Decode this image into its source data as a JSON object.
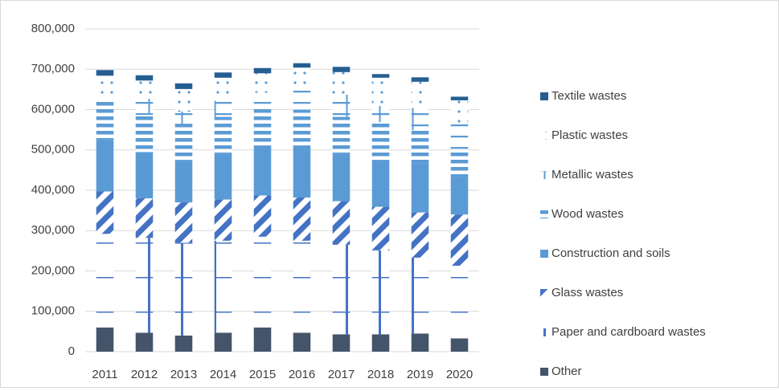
{
  "chart_data": {
    "type": "bar",
    "stacked": true,
    "title": "",
    "xlabel": "",
    "ylabel": "",
    "ylim": [
      0,
      800000
    ],
    "yticks": [
      0,
      100000,
      200000,
      300000,
      400000,
      500000,
      600000,
      700000,
      800000
    ],
    "ytick_labels": [
      "0",
      "100,000",
      "200,000",
      "300,000",
      "400,000",
      "500,000",
      "600,000",
      "700,000",
      "800,000"
    ],
    "grid": true,
    "legend_position": "right",
    "categories": [
      "2011",
      "2012",
      "2013",
      "2014",
      "2015",
      "2016",
      "2017",
      "2018",
      "2019",
      "2020"
    ],
    "series": [
      {
        "name": "Other",
        "color": "#44546a",
        "pattern": "solid",
        "values": [
          60000,
          47000,
          40000,
          47000,
          60000,
          47000,
          43000,
          43000,
          45000,
          33000
        ]
      },
      {
        "name": "Paper and cardboard wastes",
        "color": "#4472c4",
        "pattern": "cross",
        "values": [
          232000,
          235000,
          230000,
          228000,
          225000,
          228000,
          222000,
          208000,
          188000,
          180000
        ]
      },
      {
        "name": "Glass wastes",
        "color": "#4472c4",
        "pattern": "diagonal",
        "values": [
          105000,
          98000,
          100000,
          102000,
          102000,
          107000,
          108000,
          108000,
          112000,
          127000
        ]
      },
      {
        "name": "Construction and soils",
        "color": "#5b9bd5",
        "pattern": "solid",
        "values": [
          128000,
          115000,
          102000,
          113000,
          123000,
          128000,
          117000,
          115000,
          122000,
          92000
        ]
      },
      {
        "name": "Wood wastes",
        "color": "#5b9bd5",
        "pattern": "hstripe",
        "values": [
          91000,
          92000,
          93000,
          92000,
          92000,
          90000,
          92000,
          95000,
          82000,
          72000
        ]
      },
      {
        "name": "Metallic wastes",
        "color": "#5b9bd5",
        "pattern": "ladder",
        "values": [
          22000,
          40000,
          30000,
          40000,
          40000,
          50000,
          55000,
          40000,
          55000,
          62000
        ]
      },
      {
        "name": "Plastic wastes",
        "color": "#5b9bd5",
        "pattern": "dots",
        "values": [
          46000,
          45000,
          56000,
          57000,
          48000,
          54000,
          56000,
          70000,
          65000,
          57000
        ]
      },
      {
        "name": "Textile wastes",
        "color": "#255e91",
        "pattern": "solid",
        "values": [
          14000,
          13000,
          14000,
          13000,
          13000,
          11000,
          13000,
          9000,
          11000,
          9000
        ]
      }
    ]
  }
}
